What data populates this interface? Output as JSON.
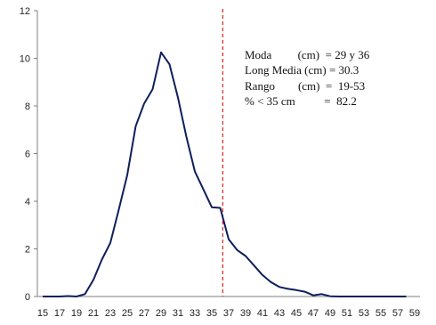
{
  "chart_data": {
    "type": "line",
    "title": "",
    "xlabel": "",
    "ylabel": "",
    "x": [
      15,
      16,
      17,
      18,
      19,
      20,
      21,
      22,
      23,
      24,
      25,
      26,
      27,
      28,
      29,
      30,
      31,
      32,
      33,
      34,
      35,
      36,
      37,
      38,
      39,
      40,
      41,
      42,
      43,
      44,
      45,
      46,
      47,
      48,
      49,
      50,
      51,
      52,
      53,
      54,
      55,
      56,
      57,
      58
    ],
    "series": [
      {
        "values": [
          0,
          0,
          0,
          0.02,
          0,
          0.1,
          0.7,
          1.55,
          2.25,
          3.65,
          5.1,
          7.15,
          8.1,
          8.7,
          10.25,
          9.75,
          8.35,
          6.7,
          5.25,
          4.5,
          3.75,
          3.72,
          2.4,
          1.95,
          1.7,
          1.3,
          0.9,
          0.6,
          0.4,
          0.32,
          0.27,
          0.2,
          0.05,
          0.1,
          0.01,
          0,
          0,
          0,
          0,
          0,
          0,
          0,
          0,
          0
        ]
      }
    ],
    "xlim": [
      15,
      59
    ],
    "ylim": [
      0,
      12
    ],
    "yticks": [
      0,
      2,
      4,
      6,
      8,
      10,
      12
    ],
    "xticks": [
      15,
      17,
      19,
      21,
      23,
      25,
      27,
      29,
      31,
      33,
      35,
      37,
      39,
      41,
      43,
      45,
      47,
      49,
      51,
      53,
      55,
      57,
      59
    ],
    "grid": false,
    "legend": "none",
    "reference_line": {
      "x": 36.3,
      "style": "dashed"
    },
    "annotations": [
      "Moda         (cm)  = 29 y 36",
      "Long Media (cm) = 30.3",
      "Rango        (cm)  =  19-53",
      "% < 35 cm          =  82.2"
    ],
    "colors": {
      "line": "#0d1f5c",
      "reference": "#e02020",
      "axis": "#7f7f7f"
    }
  }
}
